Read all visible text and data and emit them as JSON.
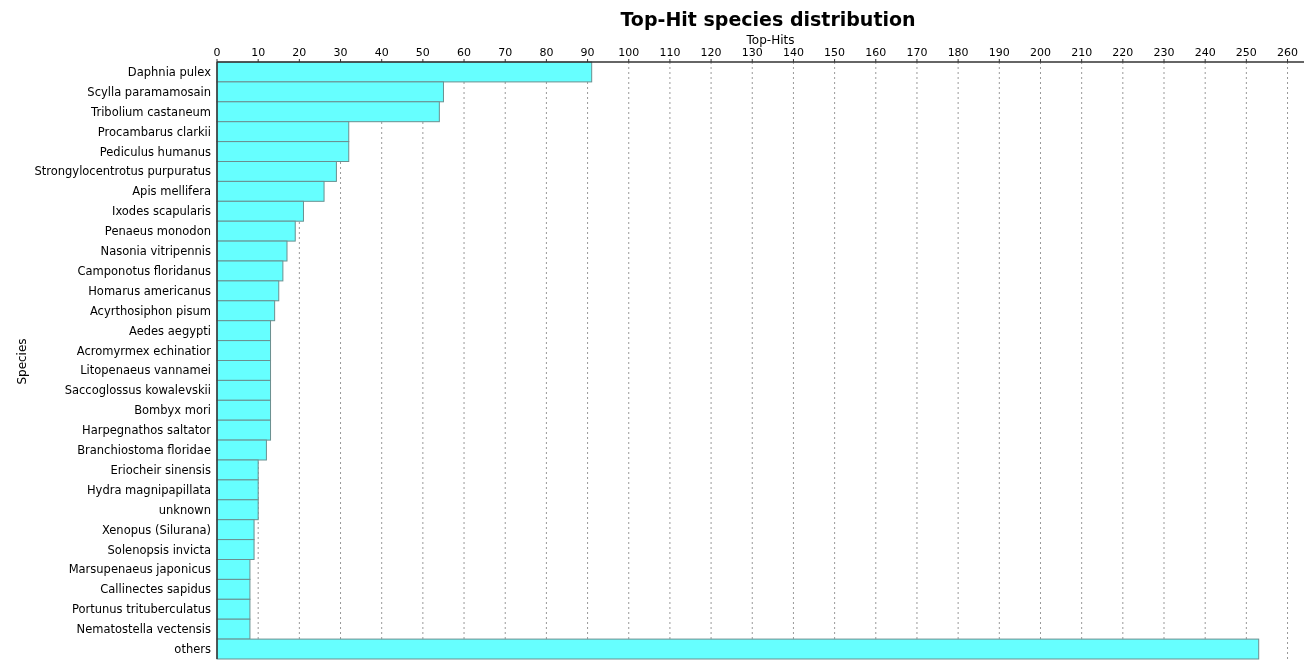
{
  "chart_data": {
    "type": "bar",
    "orientation": "horizontal",
    "title": "Top-Hit species distribution",
    "xlabel": "Top-Hits",
    "ylabel": "Species",
    "categories": [
      "Daphnia pulex",
      "Scylla paramamosain",
      "Tribolium castaneum",
      "Procambarus clarkii",
      "Pediculus humanus",
      "Strongylocentrotus purpuratus",
      "Apis mellifera",
      "Ixodes scapularis",
      "Penaeus monodon",
      "Nasonia vitripennis",
      "Camponotus floridanus",
      "Homarus americanus",
      "Acyrthosiphon pisum",
      "Aedes aegypti",
      "Acromyrmex echinatior",
      "Litopenaeus vannamei",
      "Saccoglossus kowalevskii",
      "Bombyx mori",
      "Harpegnathos saltator",
      "Branchiostoma floridae",
      "Eriocheir sinensis",
      "Hydra magnipapillata",
      "unknown",
      "Xenopus (Silurana)",
      "Solenopsis invicta",
      "Marsupenaeus japonicus",
      "Callinectes sapidus",
      "Portunus trituberculatus",
      "Nematostella vectensis",
      "others"
    ],
    "values": [
      91,
      55,
      54,
      32,
      32,
      29,
      26,
      21,
      19,
      17,
      16,
      15,
      14,
      13,
      13,
      13,
      13,
      13,
      13,
      12,
      10,
      10,
      10,
      9,
      9,
      8,
      8,
      8,
      8,
      253
    ],
    "color": "#66ffff",
    "xlim": [
      0,
      264
    ],
    "xticks": [
      0,
      10,
      20,
      30,
      40,
      50,
      60,
      70,
      80,
      90,
      100,
      110,
      120,
      130,
      140,
      150,
      160,
      170,
      180,
      190,
      200,
      210,
      220,
      230,
      240,
      250,
      260
    ],
    "grid": "x"
  }
}
